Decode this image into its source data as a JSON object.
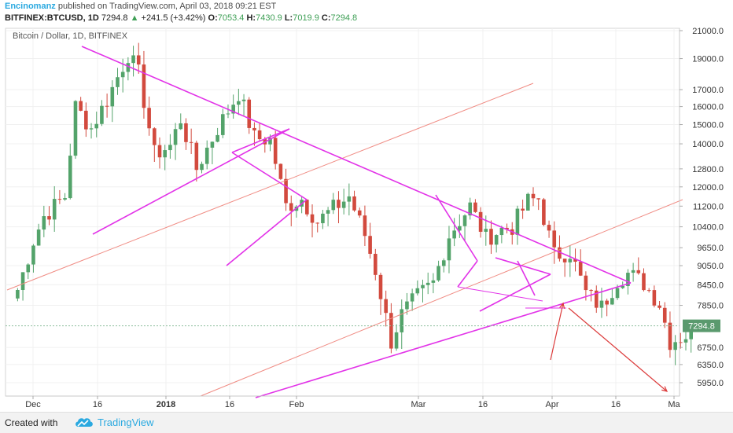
{
  "header": {
    "author": "Encinomanz",
    "published_text": " published on TradingView.com, April 03, 2018 09:21 EST",
    "symbol": "BITFINEX:BTCUSD, 1D",
    "last": "7294.8",
    "change": "+241.5 (+3.42%)",
    "o_label": "O:",
    "o_value": "7053.4",
    "h_label": "H:",
    "h_value": "7430.9",
    "l_label": "L:",
    "l_value": "7019.9",
    "c_label": "C:",
    "c_value": "7294.8"
  },
  "footer": {
    "created_with": "Created with",
    "brand": "TradingView"
  },
  "colors": {
    "up": "#53a36a",
    "down": "#d24a3e",
    "trendline": "#e233e8",
    "channel": "#f08c84",
    "arrow": "#dc3c3c",
    "price_badge": "#5a9a6e"
  },
  "chart_data": {
    "type": "candlestick",
    "title": "Bitcoin / Dollar, 1D, BITFINEX",
    "scale": "log",
    "ylim": [
      5650,
      21400
    ],
    "y_ticks": [
      "21000.0",
      "19000.0",
      "17000.0",
      "16000.0",
      "15000.0",
      "14000.0",
      "12800.0",
      "12000.0",
      "11200.0",
      "10400.0",
      "9650.0",
      "9050.0",
      "8450.0",
      "7850.0",
      "6750.0",
      "6350.0",
      "5950.0"
    ],
    "x_ticks": [
      "Dec",
      "16",
      "2018",
      "16",
      "Feb",
      "Mar",
      "16",
      "Apr",
      "16",
      "Ma"
    ],
    "last_price_label": "7294.8",
    "close_path": [
      [
        "2017-11-26",
        8300
      ],
      [
        "2017-11-29",
        9900
      ],
      [
        "2017-12-01",
        10800
      ],
      [
        "2017-12-05",
        11600
      ],
      [
        "2017-12-07",
        16000
      ],
      [
        "2017-12-10",
        14800
      ],
      [
        "2017-12-13",
        16400
      ],
      [
        "2017-12-17",
        19300
      ],
      [
        "2017-12-19",
        18000
      ],
      [
        "2017-12-22",
        13500
      ],
      [
        "2017-12-25",
        13900
      ],
      [
        "2017-12-27",
        15300
      ],
      [
        "2017-12-30",
        12800
      ],
      [
        "2018-01-03",
        14800
      ],
      [
        "2018-01-07",
        16800
      ],
      [
        "2018-01-10",
        14300
      ],
      [
        "2018-01-13",
        14200
      ],
      [
        "2018-01-16",
        11200
      ],
      [
        "2018-01-19",
        11500
      ],
      [
        "2018-01-22",
        10600
      ],
      [
        "2018-01-25",
        11100
      ],
      [
        "2018-01-28",
        11600
      ],
      [
        "2018-01-31",
        10100
      ],
      [
        "2018-02-02",
        8900
      ],
      [
        "2018-02-05",
        6900
      ],
      [
        "2018-02-07",
        7600
      ],
      [
        "2018-02-10",
        8100
      ],
      [
        "2018-02-13",
        8500
      ],
      [
        "2018-02-16",
        10100
      ],
      [
        "2018-02-20",
        11200
      ],
      [
        "2018-02-23",
        10000
      ],
      [
        "2018-02-26",
        10300
      ],
      [
        "2018-02-28",
        10400
      ],
      [
        "2018-03-03",
        11400
      ],
      [
        "2018-03-05",
        11500
      ],
      [
        "2018-03-08",
        9400
      ],
      [
        "2018-03-11",
        9500
      ],
      [
        "2018-03-14",
        8200
      ],
      [
        "2018-03-17",
        7800
      ],
      [
        "2018-03-20",
        8600
      ],
      [
        "2018-03-22",
        8800
      ],
      [
        "2018-03-25",
        8500
      ],
      [
        "2018-03-28",
        7900
      ],
      [
        "2018-03-30",
        6900
      ],
      [
        "2018-04-02",
        7053
      ],
      [
        "2018-04-03",
        7295
      ]
    ]
  }
}
